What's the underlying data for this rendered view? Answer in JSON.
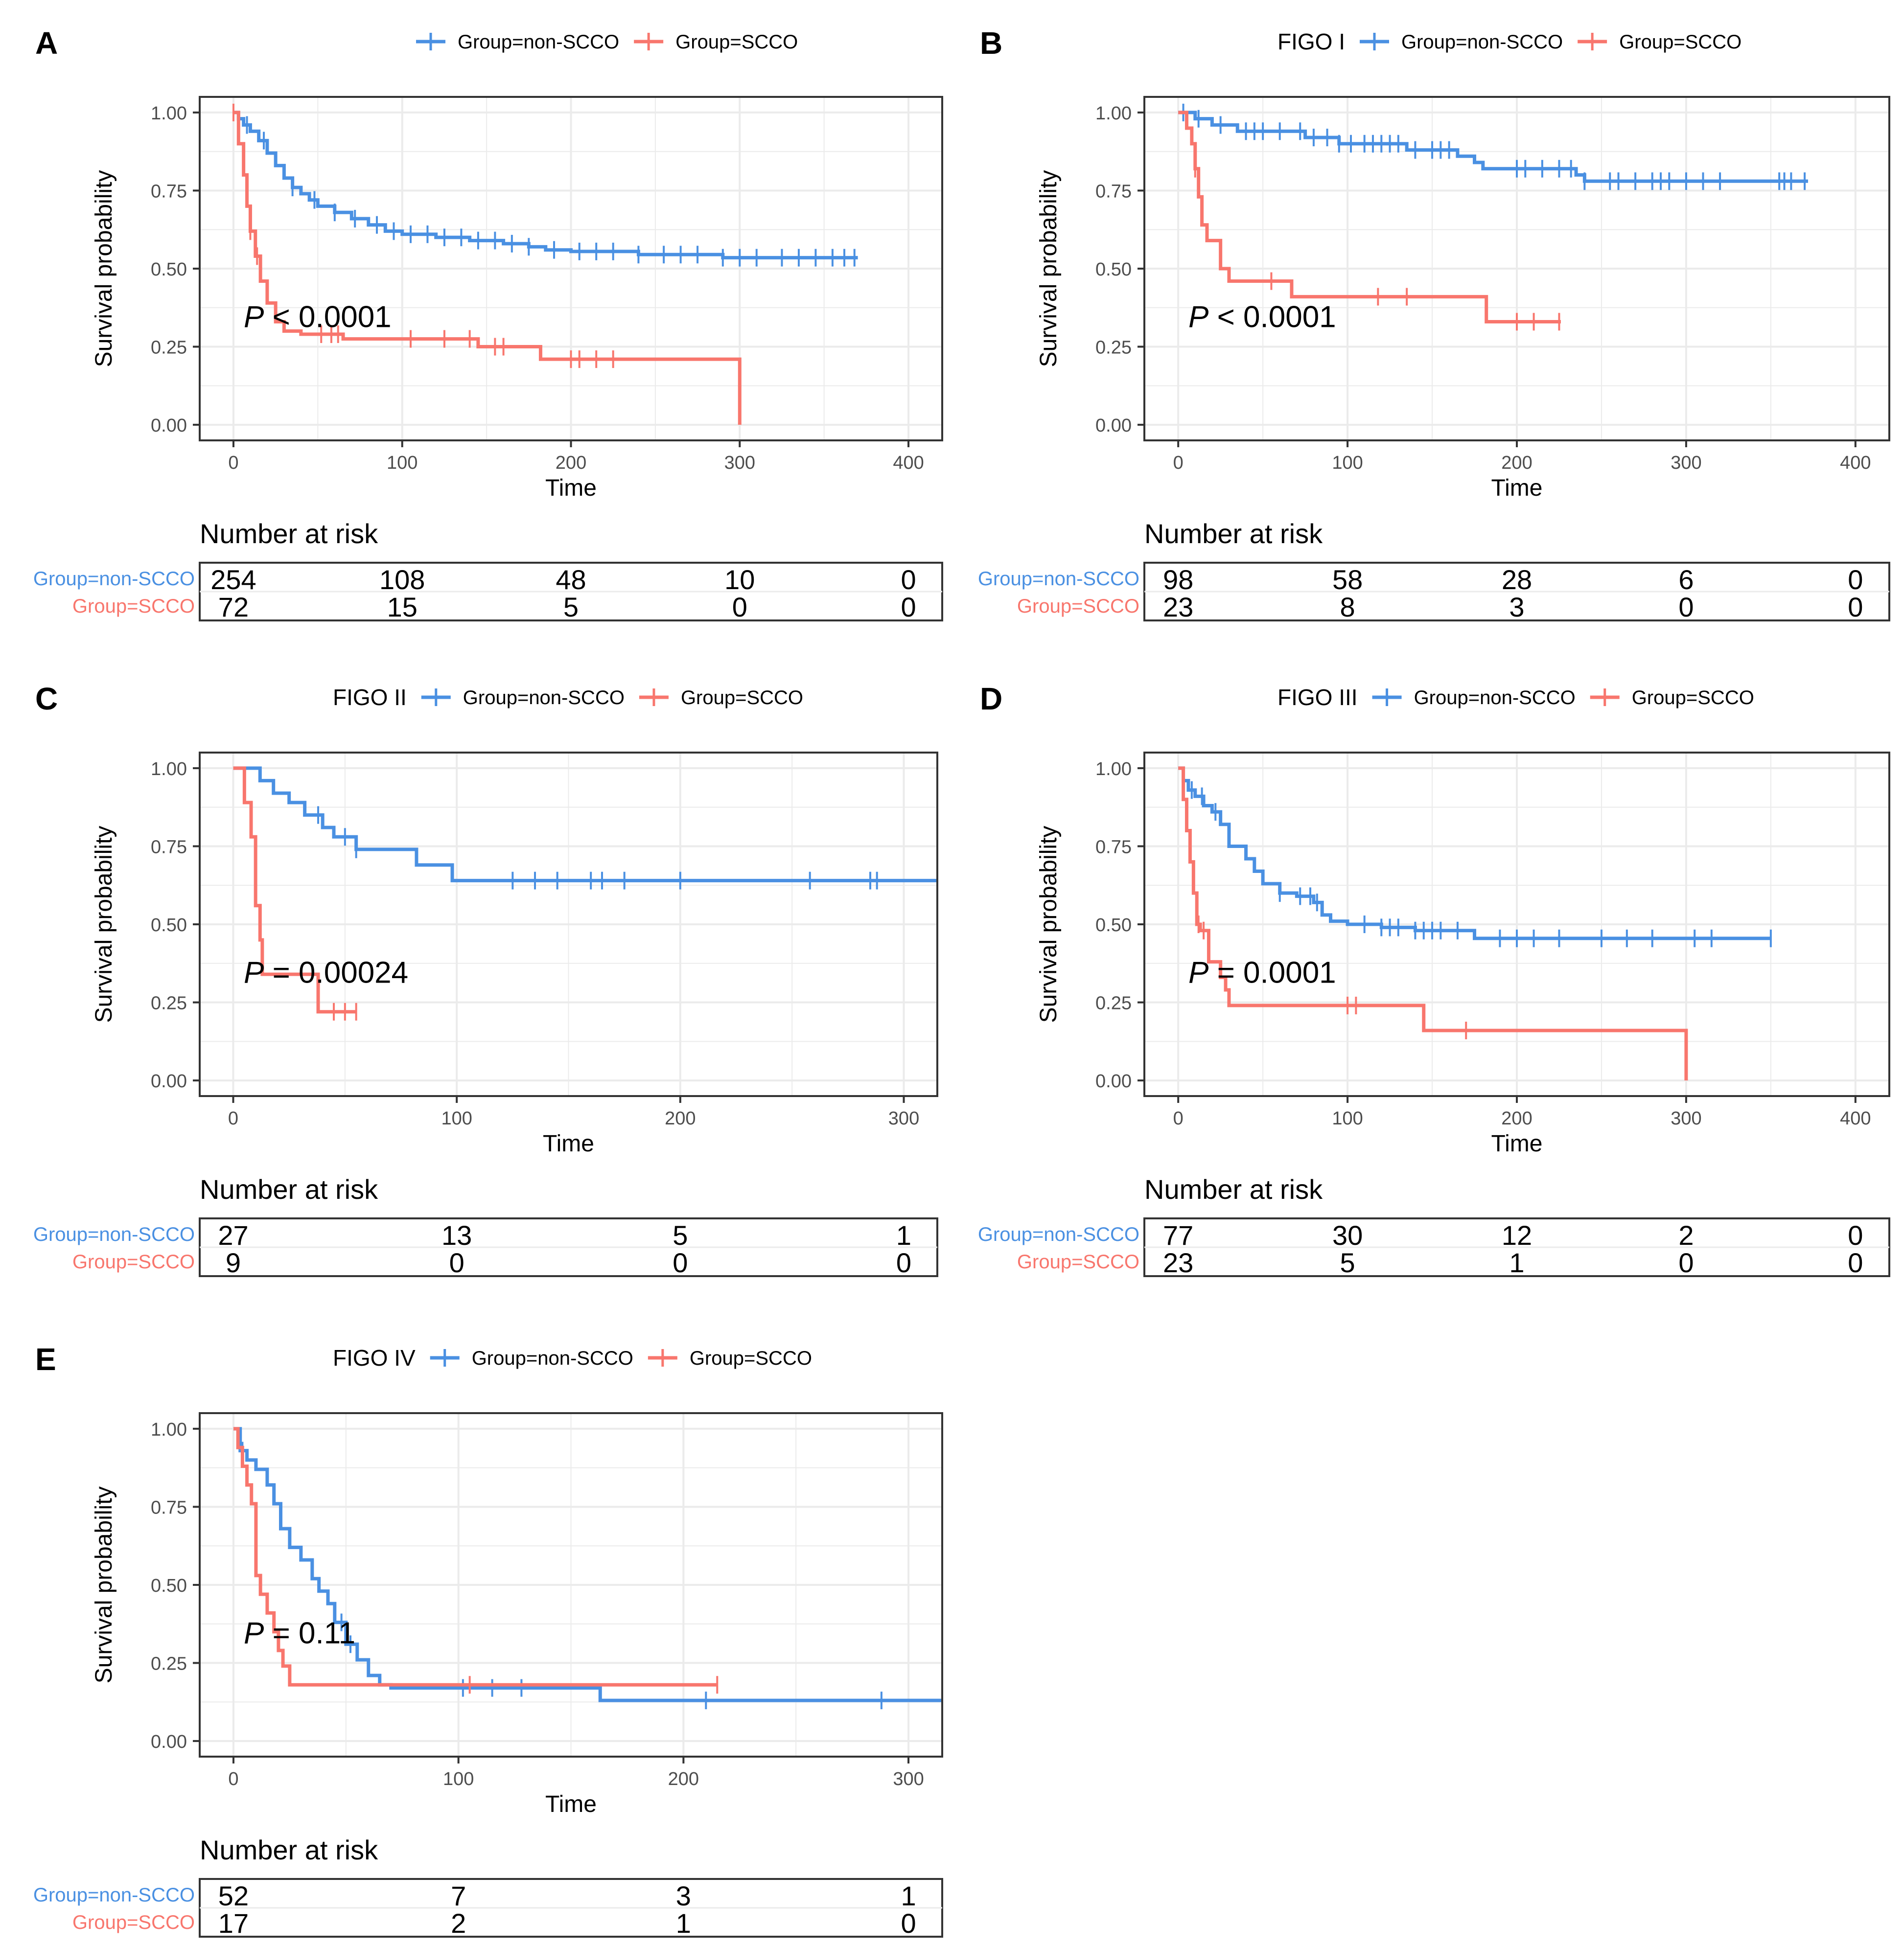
{
  "colors": {
    "non_scco": "#4A90E2",
    "scco": "#F8766D",
    "grid": "#ebebeb",
    "axis_text": "#4d4d4d",
    "frame": "#333333"
  },
  "common": {
    "xlabel": "Time",
    "ylabel": "Survival probability",
    "risk_title": "Number at risk",
    "legend_labels": [
      "Group=non-SCCO",
      "Group=SCCO"
    ],
    "p_letter": "P",
    "y_ticks": [
      0,
      0.25,
      0.5,
      0.75,
      1
    ],
    "y_tick_labels": [
      "0.00",
      "0.25",
      "0.50",
      "0.75",
      "1.00"
    ]
  },
  "chart_data": [
    {
      "panel": "A",
      "title": "",
      "type": "line",
      "xlim": [
        -20,
        420
      ],
      "ylim": [
        -0.05,
        1.05
      ],
      "x_ticks": [
        0,
        100,
        200,
        300,
        400
      ],
      "p_text": " < 0.0001",
      "series": [
        {
          "name": "Group=non-SCCO",
          "steps": [
            [
              0,
              1
            ],
            [
              3,
              0.98
            ],
            [
              6,
              0.96
            ],
            [
              10,
              0.94
            ],
            [
              15,
              0.91
            ],
            [
              20,
              0.87
            ],
            [
              25,
              0.83
            ],
            [
              30,
              0.79
            ],
            [
              35,
              0.76
            ],
            [
              40,
              0.74
            ],
            [
              45,
              0.72
            ],
            [
              50,
              0.7
            ],
            [
              60,
              0.68
            ],
            [
              70,
              0.66
            ],
            [
              80,
              0.64
            ],
            [
              90,
              0.62
            ],
            [
              100,
              0.61
            ],
            [
              120,
              0.6
            ],
            [
              140,
              0.59
            ],
            [
              160,
              0.58
            ],
            [
              175,
              0.57
            ],
            [
              185,
              0.56
            ],
            [
              200,
              0.555
            ],
            [
              240,
              0.545
            ],
            [
              290,
              0.535
            ],
            [
              370,
              0.535
            ]
          ],
          "censors": [
            8,
            18,
            35,
            48,
            60,
            72,
            85,
            95,
            105,
            115,
            125,
            135,
            145,
            155,
            165,
            175,
            190,
            205,
            215,
            225,
            240,
            255,
            265,
            275,
            290,
            300,
            310,
            325,
            335,
            345,
            355,
            362,
            368
          ]
        },
        {
          "name": "Group=SCCO",
          "steps": [
            [
              0,
              1
            ],
            [
              3,
              0.9
            ],
            [
              6,
              0.8
            ],
            [
              8,
              0.7
            ],
            [
              10,
              0.62
            ],
            [
              13,
              0.54
            ],
            [
              16,
              0.46
            ],
            [
              20,
              0.39
            ],
            [
              25,
              0.33
            ],
            [
              30,
              0.3
            ],
            [
              40,
              0.29
            ],
            [
              65,
              0.275
            ],
            [
              145,
              0.25
            ],
            [
              182,
              0.21
            ],
            [
              300,
              0.21
            ],
            [
              300,
              0
            ]
          ],
          "censors": [
            0,
            10,
            14,
            52,
            58,
            62,
            105,
            125,
            140,
            155,
            160,
            200,
            205,
            215,
            225
          ]
        }
      ],
      "risk": [
        [
          "254",
          "108",
          "48",
          "10",
          "0"
        ],
        [
          "72",
          "15",
          "5",
          "0",
          "0"
        ]
      ]
    },
    {
      "panel": "B",
      "title": "FIGO I",
      "type": "line",
      "xlim": [
        -20,
        420
      ],
      "ylim": [
        -0.05,
        1.05
      ],
      "x_ticks": [
        0,
        100,
        200,
        300,
        400
      ],
      "p_text": " < 0.0001",
      "series": [
        {
          "name": "Group=non-SCCO",
          "steps": [
            [
              0,
              1
            ],
            [
              10,
              0.98
            ],
            [
              20,
              0.96
            ],
            [
              35,
              0.94
            ],
            [
              75,
              0.92
            ],
            [
              95,
              0.9
            ],
            [
              135,
              0.88
            ],
            [
              165,
              0.86
            ],
            [
              175,
              0.84
            ],
            [
              180,
              0.82
            ],
            [
              235,
              0.8
            ],
            [
              240,
              0.78
            ],
            [
              372,
              0.78
            ]
          ],
          "censors": [
            3,
            12,
            25,
            40,
            45,
            50,
            60,
            72,
            80,
            88,
            95,
            102,
            110,
            115,
            120,
            125,
            130,
            140,
            150,
            155,
            160,
            200,
            205,
            215,
            225,
            232,
            240,
            255,
            260,
            270,
            280,
            285,
            290,
            300,
            310,
            320,
            355,
            358,
            362,
            370
          ]
        },
        {
          "name": "Group=SCCO",
          "steps": [
            [
              0,
              1
            ],
            [
              5,
              0.95
            ],
            [
              8,
              0.9
            ],
            [
              10,
              0.82
            ],
            [
              12,
              0.73
            ],
            [
              14,
              0.64
            ],
            [
              17,
              0.59
            ],
            [
              25,
              0.5
            ],
            [
              30,
              0.46
            ],
            [
              67,
              0.41
            ],
            [
              182,
              0.41
            ],
            [
              182,
              0.33
            ],
            [
              226,
              0.33
            ]
          ],
          "censors": [
            10,
            55,
            118,
            135,
            200,
            210,
            225
          ]
        }
      ],
      "risk": [
        [
          "98",
          "58",
          "28",
          "6",
          "0"
        ],
        [
          "23",
          "8",
          "3",
          "0",
          "0"
        ]
      ]
    },
    {
      "panel": "C",
      "title": "FIGO II",
      "type": "line",
      "xlim": [
        -15,
        315
      ],
      "ylim": [
        -0.05,
        1.05
      ],
      "x_ticks": [
        0,
        100,
        200,
        300
      ],
      "p_text": " = 0.00024",
      "series": [
        {
          "name": "Group=non-SCCO",
          "steps": [
            [
              0,
              1
            ],
            [
              12,
              0.96
            ],
            [
              18,
              0.92
            ],
            [
              25,
              0.89
            ],
            [
              32,
              0.85
            ],
            [
              40,
              0.81
            ],
            [
              45,
              0.78
            ],
            [
              55,
              0.74
            ],
            [
              82,
              0.74
            ],
            [
              82,
              0.69
            ],
            [
              98,
              0.69
            ],
            [
              98,
              0.64
            ],
            [
              315,
              0.64
            ]
          ],
          "censors": [
            38,
            50,
            55,
            125,
            135,
            145,
            160,
            165,
            175,
            200,
            258,
            285,
            288
          ]
        },
        {
          "name": "Group=SCCO",
          "steps": [
            [
              0,
              1
            ],
            [
              5,
              0.89
            ],
            [
              8,
              0.78
            ],
            [
              10,
              0.56
            ],
            [
              12,
              0.45
            ],
            [
              13,
              0.34
            ],
            [
              38,
              0.34
            ],
            [
              38,
              0.22
            ],
            [
              55,
              0.22
            ]
          ],
          "censors": [
            45,
            50,
            55
          ]
        }
      ],
      "risk": [
        [
          "27",
          "13",
          "5",
          "1"
        ],
        [
          "9",
          "0",
          "0",
          "0"
        ]
      ]
    },
    {
      "panel": "D",
      "title": "FIGO III",
      "type": "line",
      "xlim": [
        -20,
        420
      ],
      "ylim": [
        -0.05,
        1.05
      ],
      "x_ticks": [
        0,
        100,
        200,
        300,
        400
      ],
      "p_text": " = 0.0001",
      "series": [
        {
          "name": "Group=non-SCCO",
          "steps": [
            [
              0,
              1
            ],
            [
              3,
              0.96
            ],
            [
              6,
              0.93
            ],
            [
              10,
              0.91
            ],
            [
              15,
              0.88
            ],
            [
              20,
              0.86
            ],
            [
              25,
              0.82
            ],
            [
              30,
              0.75
            ],
            [
              40,
              0.71
            ],
            [
              45,
              0.67
            ],
            [
              50,
              0.63
            ],
            [
              60,
              0.6
            ],
            [
              70,
              0.59
            ],
            [
              80,
              0.57
            ],
            [
              85,
              0.53
            ],
            [
              90,
              0.51
            ],
            [
              100,
              0.5
            ],
            [
              120,
              0.49
            ],
            [
              140,
              0.48
            ],
            [
              175,
              0.48
            ],
            [
              175,
              0.455
            ],
            [
              350,
              0.455
            ]
          ],
          "censors": [
            8,
            14,
            22,
            60,
            72,
            78,
            82,
            110,
            120,
            125,
            130,
            140,
            145,
            150,
            155,
            165,
            190,
            200,
            210,
            225,
            250,
            265,
            280,
            305,
            315,
            350
          ]
        },
        {
          "name": "Group=SCCO",
          "steps": [
            [
              0,
              1
            ],
            [
              3,
              0.9
            ],
            [
              5,
              0.8
            ],
            [
              7,
              0.7
            ],
            [
              9,
              0.6
            ],
            [
              11,
              0.5
            ],
            [
              13,
              0.48
            ],
            [
              18,
              0.38
            ],
            [
              25,
              0.33
            ],
            [
              28,
              0.29
            ],
            [
              30,
              0.24
            ],
            [
              140,
              0.24
            ],
            [
              145,
              0.16
            ],
            [
              300,
              0.16
            ],
            [
              300,
              0
            ]
          ],
          "censors": [
            12,
            15,
            100,
            105,
            170
          ]
        }
      ],
      "risk": [
        [
          "77",
          "30",
          "12",
          "2",
          "0"
        ],
        [
          "23",
          "5",
          "1",
          "0",
          "0"
        ]
      ]
    },
    {
      "panel": "E",
      "title": "FIGO IV",
      "type": "line",
      "xlim": [
        -15,
        315
      ],
      "ylim": [
        -0.05,
        1.05
      ],
      "x_ticks": [
        0,
        100,
        200,
        300
      ],
      "p_text": " = 0.11",
      "series": [
        {
          "name": "Group=non-SCCO",
          "steps": [
            [
              0,
              1
            ],
            [
              3,
              0.93
            ],
            [
              6,
              0.9
            ],
            [
              10,
              0.87
            ],
            [
              15,
              0.82
            ],
            [
              18,
              0.76
            ],
            [
              21,
              0.68
            ],
            [
              25,
              0.62
            ],
            [
              30,
              0.58
            ],
            [
              35,
              0.52
            ],
            [
              38,
              0.48
            ],
            [
              42,
              0.44
            ],
            [
              45,
              0.38
            ],
            [
              50,
              0.31
            ],
            [
              55,
              0.26
            ],
            [
              60,
              0.21
            ],
            [
              65,
              0.18
            ],
            [
              70,
              0.17
            ],
            [
              130,
              0.17
            ],
            [
              163,
              0.17
            ],
            [
              163,
              0.13
            ],
            [
              315,
              0.13
            ]
          ],
          "censors": [
            4,
            48,
            52,
            102,
            115,
            128,
            210,
            288
          ]
        },
        {
          "name": "Group=SCCO",
          "steps": [
            [
              0,
              1
            ],
            [
              2,
              0.94
            ],
            [
              4,
              0.88
            ],
            [
              6,
              0.82
            ],
            [
              8,
              0.76
            ],
            [
              10,
              0.53
            ],
            [
              12,
              0.47
            ],
            [
              15,
              0.41
            ],
            [
              18,
              0.35
            ],
            [
              20,
              0.29
            ],
            [
              22,
              0.24
            ],
            [
              25,
              0.18
            ],
            [
              215,
              0.18
            ]
          ],
          "censors": [
            105,
            215
          ]
        }
      ],
      "risk": [
        [
          "52",
          "7",
          "3",
          "1"
        ],
        [
          "17",
          "2",
          "1",
          "0"
        ]
      ]
    }
  ]
}
